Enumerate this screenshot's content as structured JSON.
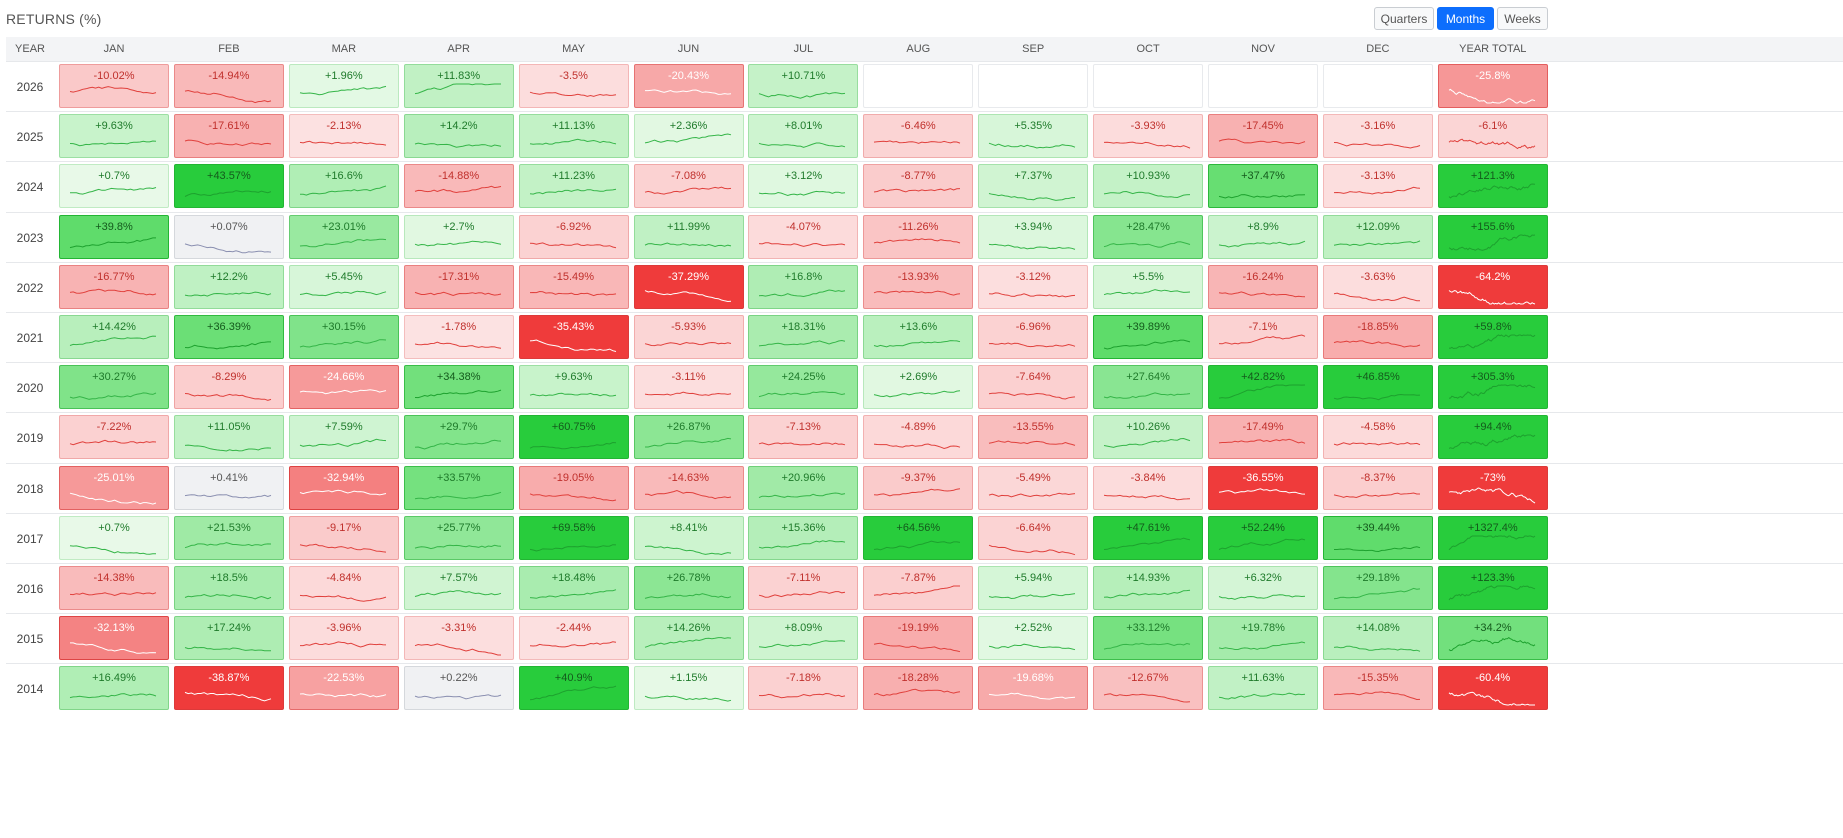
{
  "title": "RETURNS (%)",
  "toggles": [
    {
      "label": "Quarters",
      "active": false
    },
    {
      "label": "Months",
      "active": true
    },
    {
      "label": "Weeks",
      "active": false
    }
  ],
  "chart_data": {
    "type": "heatmap",
    "title": "RETURNS (%)",
    "columns": [
      "YEAR",
      "JAN",
      "FEB",
      "MAR",
      "APR",
      "MAY",
      "JUN",
      "JUL",
      "AUG",
      "SEP",
      "OCT",
      "NOV",
      "DEC",
      "YEAR TOTAL"
    ],
    "rows": [
      {
        "year": "2026",
        "values": [
          "-10.02%",
          "-14.94%",
          "+1.96%",
          "+11.83%",
          "-3.5%",
          "-20.43%",
          "+10.71%",
          null,
          null,
          null,
          null,
          null,
          "-25.8%"
        ]
      },
      {
        "year": "2025",
        "values": [
          "+9.63%",
          "-17.61%",
          "-2.13%",
          "+14.2%",
          "+11.13%",
          "+2.36%",
          "+8.01%",
          "-6.46%",
          "+5.35%",
          "-3.93%",
          "-17.45%",
          "-3.16%",
          "-6.1%"
        ]
      },
      {
        "year": "2024",
        "values": [
          "+0.7%",
          "+43.57%",
          "+16.6%",
          "-14.88%",
          "+11.23%",
          "-7.08%",
          "+3.12%",
          "-8.77%",
          "+7.37%",
          "+10.93%",
          "+37.47%",
          "-3.13%",
          "+121.3%"
        ]
      },
      {
        "year": "2023",
        "values": [
          "+39.8%",
          "+0.07%",
          "+23.01%",
          "+2.7%",
          "-6.92%",
          "+11.99%",
          "-4.07%",
          "-11.26%",
          "+3.94%",
          "+28.47%",
          "+8.9%",
          "+12.09%",
          "+155.6%"
        ]
      },
      {
        "year": "2022",
        "values": [
          "-16.77%",
          "+12.2%",
          "+5.45%",
          "-17.31%",
          "-15.49%",
          "-37.29%",
          "+16.8%",
          "-13.93%",
          "-3.12%",
          "+5.5%",
          "-16.24%",
          "-3.63%",
          "-64.2%"
        ]
      },
      {
        "year": "2021",
        "values": [
          "+14.42%",
          "+36.39%",
          "+30.15%",
          "-1.78%",
          "-35.43%",
          "-5.93%",
          "+18.31%",
          "+13.6%",
          "-6.96%",
          "+39.89%",
          "-7.1%",
          "-18.85%",
          "+59.8%"
        ]
      },
      {
        "year": "2020",
        "values": [
          "+30.27%",
          "-8.29%",
          "-24.66%",
          "+34.38%",
          "+9.63%",
          "-3.11%",
          "+24.25%",
          "+2.69%",
          "-7.64%",
          "+27.64%",
          "+42.82%",
          "+46.85%",
          "+305.3%"
        ]
      },
      {
        "year": "2019",
        "values": [
          "-7.22%",
          "+11.05%",
          "+7.59%",
          "+29.7%",
          "+60.75%",
          "+26.87%",
          "-7.13%",
          "-4.89%",
          "-13.55%",
          "+10.26%",
          "-17.49%",
          "-4.58%",
          "+94.4%"
        ]
      },
      {
        "year": "2018",
        "values": [
          "-25.01%",
          "+0.41%",
          "-32.94%",
          "+33.57%",
          "-19.05%",
          "-14.63%",
          "+20.96%",
          "-9.37%",
          "-5.49%",
          "-3.84%",
          "-36.55%",
          "-8.37%",
          "-73%"
        ]
      },
      {
        "year": "2017",
        "values": [
          "+0.7%",
          "+21.53%",
          "-9.17%",
          "+25.77%",
          "+69.58%",
          "+8.41%",
          "+15.36%",
          "+64.56%",
          "-6.64%",
          "+47.61%",
          "+52.24%",
          "+39.44%",
          "+1327.4%"
        ]
      },
      {
        "year": "2016",
        "values": [
          "-14.38%",
          "+18.5%",
          "-4.84%",
          "+7.57%",
          "+18.48%",
          "+26.78%",
          "-7.11%",
          "-7.87%",
          "+5.94%",
          "+14.93%",
          "+6.32%",
          "+29.18%",
          "+123.3%"
        ]
      },
      {
        "year": "2015",
        "values": [
          "-32.13%",
          "+17.24%",
          "-3.96%",
          "-3.31%",
          "-2.44%",
          "+14.26%",
          "+8.09%",
          "-19.19%",
          "+2.52%",
          "+33.12%",
          "+19.78%",
          "+14.08%",
          "+34.2%"
        ]
      },
      {
        "year": "2014",
        "values": [
          "+16.49%",
          "-38.87%",
          "-22.53%",
          "+0.22%",
          "+40.9%",
          "+1.15%",
          "-7.18%",
          "-18.28%",
          "-19.68%",
          "-12.67%",
          "+11.63%",
          "-15.35%",
          "-60.4%"
        ]
      }
    ]
  }
}
